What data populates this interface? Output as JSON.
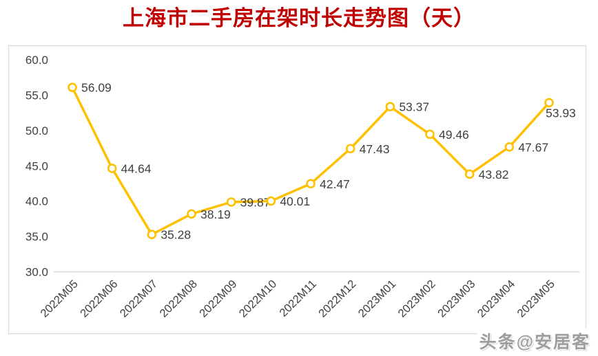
{
  "page": {
    "title": "上海市二手房在架时长走势图（天）",
    "title_color": "#C00000",
    "watermark": "头条@安居客"
  },
  "chart_data": {
    "type": "line",
    "title": "上海市二手房在架时长走势图（天）",
    "categories": [
      "2022M05",
      "2022M06",
      "2022M07",
      "2022M08",
      "2022M09",
      "2022M10",
      "2022M11",
      "2022M12",
      "2023M01",
      "2023M02",
      "2023M03",
      "2023M04",
      "2023M05"
    ],
    "values": [
      56.09,
      44.64,
      35.28,
      38.19,
      39.87,
      40.01,
      42.47,
      47.43,
      53.37,
      49.46,
      43.82,
      47.67,
      53.93
    ],
    "data_labels": [
      "56.09",
      "44.64",
      "35.28",
      "38.19",
      "39.87",
      "40.01",
      "42.47",
      "47.43",
      "53.37",
      "49.46",
      "43.82",
      "47.67",
      "53.93"
    ],
    "yticks": [
      "60.0",
      "55.0",
      "50.0",
      "45.0",
      "40.0",
      "35.0",
      "30.0"
    ],
    "ylim": [
      30,
      60
    ],
    "xlabel": "",
    "ylabel": "",
    "grid": false,
    "legend": "none",
    "line_color": "#FFC000",
    "marker": "open-circle",
    "marker_fill": "#FFFFFF",
    "text_color": "#404040",
    "axis_line_color": "#D9D9D9",
    "panel_border_color": "#DCDCDC"
  }
}
